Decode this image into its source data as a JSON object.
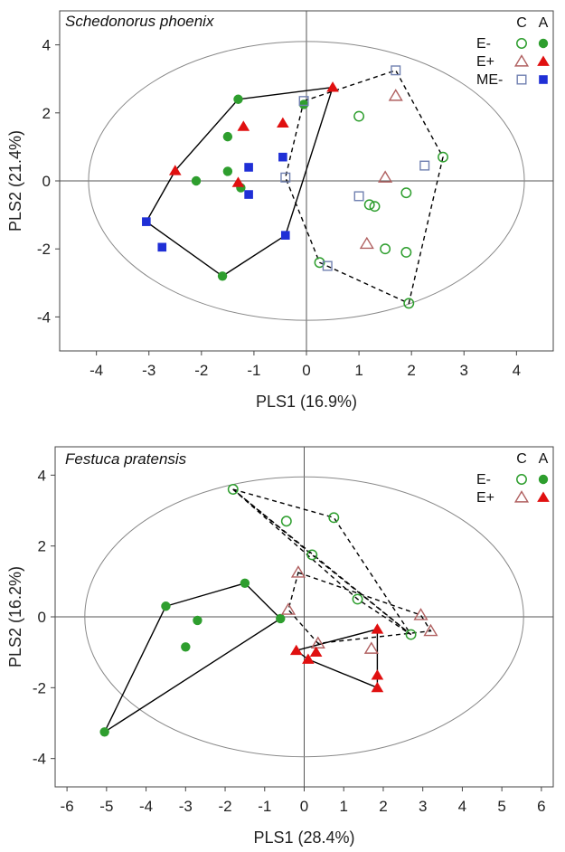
{
  "chart_data": [
    {
      "type": "scatter",
      "title": "Schedonorus phoenix",
      "xlabel": "PLS1 (16.9%)",
      "ylabel": "PLS2 (21.4%)",
      "xlim": [
        -4.7,
        4.7
      ],
      "ylim": [
        -5.0,
        5.0
      ],
      "xticks": [
        "-4",
        "-3",
        "-2",
        "-1",
        "0",
        "1",
        "2",
        "3",
        "4"
      ],
      "yticks": [
        "-4",
        "-2",
        "0",
        "2",
        "4"
      ],
      "legend_headers": [
        "C",
        "A"
      ],
      "legend_rows": [
        "E-",
        "E+",
        "ME-"
      ],
      "colors": {
        "E-": "#2e9e2e",
        "E+": "#e01010",
        "ME-": "#1f2fd6"
      },
      "ellipse": {
        "cx": 0,
        "cy": 0,
        "rx": 4.15,
        "ry": 4.1
      },
      "series": [
        {
          "name": "E-",
          "treatment": "C",
          "marker": "circle-open",
          "x": [
            1.0,
            2.6,
            1.9,
            1.2,
            1.3,
            1.5,
            1.9,
            0.25,
            1.95
          ],
          "y": [
            1.9,
            0.7,
            -0.35,
            -0.7,
            -0.75,
            -2.0,
            -2.1,
            -2.4,
            -3.6
          ]
        },
        {
          "name": "E-",
          "treatment": "A",
          "marker": "circle-filled",
          "x": [
            -1.3,
            -1.5,
            -1.5,
            -2.1,
            -1.25,
            -1.6,
            -0.05
          ],
          "y": [
            2.4,
            1.3,
            0.28,
            0.0,
            -0.2,
            -2.8,
            2.25
          ]
        },
        {
          "name": "E+",
          "treatment": "C",
          "marker": "triangle-open",
          "x": [
            1.7,
            1.5,
            1.15
          ],
          "y": [
            2.5,
            0.1,
            -1.85
          ]
        },
        {
          "name": "E+",
          "treatment": "A",
          "marker": "triangle-filled",
          "x": [
            0.5,
            -1.2,
            -0.45,
            -2.5,
            -1.3
          ],
          "y": [
            2.75,
            1.6,
            1.7,
            0.3,
            -0.05
          ]
        },
        {
          "name": "ME-",
          "treatment": "C",
          "marker": "square-open",
          "x": [
            1.7,
            -0.05,
            2.25,
            -0.4,
            1.0,
            0.4
          ],
          "y": [
            3.25,
            2.35,
            0.45,
            0.1,
            -0.45,
            -2.5
          ]
        },
        {
          "name": "ME-",
          "treatment": "A",
          "marker": "square-filled",
          "x": [
            -0.45,
            -1.1,
            -1.1,
            -3.05,
            -2.75,
            -0.4
          ],
          "y": [
            0.7,
            0.4,
            -0.4,
            -1.2,
            -1.95,
            -1.6
          ]
        }
      ],
      "hulls": [
        {
          "style": "solid",
          "x": [
            -1.3,
            0.5,
            -0.4,
            -1.6,
            -3.05,
            -2.5
          ],
          "y": [
            2.4,
            2.75,
            -1.6,
            -2.8,
            -1.2,
            0.3
          ]
        },
        {
          "style": "dashed",
          "x": [
            -0.05,
            1.7,
            2.6,
            1.95,
            0.25,
            -0.4
          ],
          "y": [
            2.35,
            3.25,
            0.7,
            -3.6,
            -2.4,
            0.1
          ]
        }
      ]
    },
    {
      "type": "scatter",
      "title": "Festuca pratensis",
      "xlabel": "PLS1 (28.4%)",
      "ylabel": "PLS2 (16.2%)",
      "xlim": [
        -6.3,
        6.3
      ],
      "ylim": [
        -4.8,
        4.8
      ],
      "xticks": [
        "-6",
        "-5",
        "-4",
        "-3",
        "-2",
        "-1",
        "0",
        "1",
        "2",
        "3",
        "4",
        "5",
        "6"
      ],
      "yticks": [
        "-4",
        "-2",
        "0",
        "2",
        "4"
      ],
      "legend_headers": [
        "C",
        "A"
      ],
      "legend_rows": [
        "E-",
        "E+"
      ],
      "colors": {
        "E-": "#2e9e2e",
        "E+": "#e01010"
      },
      "ellipse": {
        "cx": 0,
        "cy": 0,
        "rx": 5.55,
        "ry": 3.95
      },
      "series": [
        {
          "name": "E-",
          "treatment": "C",
          "marker": "circle-open",
          "x": [
            -1.8,
            -0.45,
            0.75,
            0.2,
            1.35,
            2.7
          ],
          "y": [
            3.6,
            2.7,
            2.8,
            1.75,
            0.5,
            -0.5
          ]
        },
        {
          "name": "E-",
          "treatment": "A",
          "marker": "circle-filled",
          "x": [
            -3.5,
            -1.5,
            -2.7,
            -0.6,
            -3.0,
            -5.05
          ],
          "y": [
            0.3,
            0.95,
            -0.1,
            -0.05,
            -0.85,
            -3.25
          ]
        },
        {
          "name": "E+",
          "treatment": "C",
          "marker": "triangle-open",
          "x": [
            -0.15,
            -0.4,
            2.95,
            3.2,
            0.35,
            1.7
          ],
          "y": [
            1.25,
            0.2,
            0.05,
            -0.4,
            -0.75,
            -0.9
          ]
        },
        {
          "name": "E+",
          "treatment": "A",
          "marker": "triangle-filled",
          "x": [
            1.85,
            -0.2,
            0.3,
            0.1,
            1.85,
            1.85
          ],
          "y": [
            -0.35,
            -0.95,
            -1.0,
            -1.2,
            -1.65,
            -2.0
          ]
        }
      ],
      "hulls": [
        {
          "style": "solid",
          "x": [
            -3.5,
            -1.5,
            -0.6,
            -5.05
          ],
          "y": [
            0.3,
            0.95,
            -0.05,
            -3.25
          ]
        },
        {
          "style": "solid",
          "x": [
            -0.2,
            1.85,
            1.85,
            0.1
          ],
          "y": [
            -0.95,
            -0.35,
            -2.0,
            -1.2
          ]
        },
        {
          "style": "dashed",
          "x": [
            -1.8,
            0.75,
            2.7,
            0.2
          ],
          "y": [
            3.6,
            2.8,
            -0.5,
            1.75
          ]
        },
        {
          "style": "dashed",
          "x": [
            -1.8,
            1.35,
            2.7
          ],
          "y": [
            3.6,
            0.5,
            -0.5
          ]
        },
        {
          "style": "dashed",
          "x": [
            -0.15,
            2.95,
            3.2,
            0.35,
            -0.4
          ],
          "y": [
            1.25,
            0.05,
            -0.4,
            -0.75,
            0.2
          ]
        }
      ]
    }
  ]
}
